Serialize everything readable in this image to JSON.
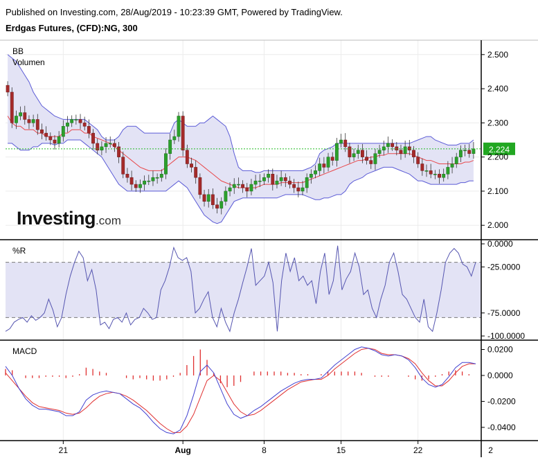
{
  "header": {
    "published": "Published on Investing.com, 28/Aug/2019 - 10:23:39 GMT, Powered by TradingView.",
    "instrument": "Erdgas Futures, (CFD):NG, 300"
  },
  "brand": {
    "logo_text": "Investing",
    "logo_suffix": ".com"
  },
  "panels": {
    "price": {
      "label_bb": "BB",
      "label_vol": "Volumen"
    },
    "williams": {
      "label": "%R"
    },
    "macd": {
      "label": "MACD"
    }
  },
  "colors": {
    "up": "#2ca02c",
    "down": "#a52a2a",
    "bb_band": "#5b5bd6",
    "bb_fill": "#e3e3f5",
    "bb_mid": "#e8474a",
    "wr_line": "#5555b0",
    "macd_line": "#4040d0",
    "signal_line": "#e03030",
    "hist": "#e03030",
    "last_price_bg": "#22a722",
    "last_price_line": "#22bb22"
  },
  "chart_data": [
    {
      "type": "candlestick",
      "name": "price",
      "ylim": [
        1.97,
        2.53
      ],
      "y_ticks": [
        "2.500",
        "2.400",
        "2.300",
        "2.200",
        "2.100",
        "2.000"
      ],
      "y_tick_values": [
        2.5,
        2.4,
        2.3,
        2.2,
        2.1,
        2.0
      ],
      "x_ticks": [
        {
          "label": "21",
          "index": 13
        },
        {
          "label": "Aug",
          "index": 41
        },
        {
          "label": "8",
          "index": 60
        },
        {
          "label": "15",
          "index": 78
        },
        {
          "label": "22",
          "index": 96
        },
        {
          "label": "2",
          "index": 114
        }
      ],
      "last_price": 2.224,
      "last_price_label": "2.224",
      "candle_count": 110,
      "close": [
        2.39,
        2.3,
        2.32,
        2.33,
        2.31,
        2.3,
        2.31,
        2.28,
        2.27,
        2.26,
        2.25,
        2.24,
        2.26,
        2.29,
        2.3,
        2.31,
        2.31,
        2.3,
        2.29,
        2.27,
        2.24,
        2.22,
        2.23,
        2.24,
        2.24,
        2.23,
        2.2,
        2.15,
        2.14,
        2.12,
        2.11,
        2.12,
        2.13,
        2.13,
        2.14,
        2.14,
        2.15,
        2.21,
        2.25,
        2.26,
        2.32,
        2.22,
        2.18,
        2.17,
        2.14,
        2.09,
        2.07,
        2.09,
        2.06,
        2.05,
        2.07,
        2.1,
        2.11,
        2.12,
        2.12,
        2.11,
        2.1,
        2.12,
        2.13,
        2.13,
        2.14,
        2.15,
        2.12,
        2.13,
        2.14,
        2.13,
        2.12,
        2.11,
        2.1,
        2.11,
        2.14,
        2.15,
        2.16,
        2.18,
        2.17,
        2.2,
        2.19,
        2.24,
        2.25,
        2.23,
        2.2,
        2.21,
        2.22,
        2.2,
        2.19,
        2.18,
        2.21,
        2.22,
        2.23,
        2.24,
        2.23,
        2.22,
        2.21,
        2.23,
        2.22,
        2.2,
        2.18,
        2.16,
        2.16,
        2.15,
        2.15,
        2.14,
        2.15,
        2.17,
        2.18,
        2.2,
        2.22,
        2.22,
        2.21,
        2.224
      ],
      "bb_upper": [
        2.5,
        2.49,
        2.48,
        2.46,
        2.44,
        2.42,
        2.39,
        2.37,
        2.35,
        2.34,
        2.33,
        2.32,
        2.315,
        2.31,
        2.31,
        2.31,
        2.31,
        2.31,
        2.31,
        2.3,
        2.29,
        2.28,
        2.26,
        2.25,
        2.25,
        2.25,
        2.26,
        2.28,
        2.29,
        2.29,
        2.29,
        2.28,
        2.27,
        2.27,
        2.27,
        2.27,
        2.27,
        2.27,
        2.27,
        2.3,
        2.31,
        2.3,
        2.29,
        2.29,
        2.29,
        2.3,
        2.3,
        2.31,
        2.32,
        2.31,
        2.3,
        2.29,
        2.26,
        2.21,
        2.17,
        2.16,
        2.16,
        2.16,
        2.155,
        2.155,
        2.16,
        2.16,
        2.16,
        2.16,
        2.16,
        2.16,
        2.16,
        2.16,
        2.16,
        2.16,
        2.165,
        2.17,
        2.18,
        2.21,
        2.22,
        2.225,
        2.23,
        2.24,
        2.24,
        2.24,
        2.24,
        2.24,
        2.24,
        2.24,
        2.24,
        2.24,
        2.24,
        2.24,
        2.24,
        2.24,
        2.24,
        2.24,
        2.24,
        2.24,
        2.24,
        2.245,
        2.25,
        2.255,
        2.26,
        2.26,
        2.25,
        2.245,
        2.24,
        2.235,
        2.235,
        2.235,
        2.24,
        2.24,
        2.24,
        2.25
      ],
      "bb_mid": [
        2.32,
        2.3,
        2.29,
        2.29,
        2.28,
        2.28,
        2.28,
        2.27,
        2.27,
        2.26,
        2.26,
        2.26,
        2.26,
        2.27,
        2.27,
        2.28,
        2.28,
        2.28,
        2.27,
        2.27,
        2.26,
        2.255,
        2.25,
        2.245,
        2.24,
        2.23,
        2.22,
        2.21,
        2.2,
        2.19,
        2.18,
        2.17,
        2.165,
        2.16,
        2.16,
        2.16,
        2.16,
        2.17,
        2.18,
        2.19,
        2.2,
        2.2,
        2.2,
        2.195,
        2.19,
        2.18,
        2.17,
        2.16,
        2.15,
        2.14,
        2.13,
        2.125,
        2.12,
        2.115,
        2.11,
        2.11,
        2.11,
        2.11,
        2.11,
        2.115,
        2.12,
        2.12,
        2.12,
        2.12,
        2.125,
        2.125,
        2.125,
        2.125,
        2.125,
        2.125,
        2.13,
        2.135,
        2.14,
        2.145,
        2.15,
        2.155,
        2.16,
        2.165,
        2.17,
        2.175,
        2.18,
        2.185,
        2.19,
        2.19,
        2.195,
        2.2,
        2.2,
        2.205,
        2.205,
        2.21,
        2.21,
        2.21,
        2.21,
        2.21,
        2.21,
        2.205,
        2.2,
        2.195,
        2.19,
        2.19,
        2.185,
        2.18,
        2.18,
        2.18,
        2.18,
        2.18,
        2.18,
        2.185,
        2.185,
        2.19
      ],
      "bb_lower": [
        2.24,
        2.24,
        2.23,
        2.22,
        2.22,
        2.22,
        2.23,
        2.23,
        2.24,
        2.24,
        2.24,
        2.235,
        2.24,
        2.24,
        2.25,
        2.25,
        2.25,
        2.25,
        2.24,
        2.23,
        2.22,
        2.21,
        2.2,
        2.18,
        2.16,
        2.14,
        2.12,
        2.11,
        2.1,
        2.1,
        2.1,
        2.1,
        2.1,
        2.1,
        2.1,
        2.1,
        2.1,
        2.1,
        2.11,
        2.12,
        2.13,
        2.12,
        2.11,
        2.09,
        2.07,
        2.05,
        2.03,
        2.02,
        2.01,
        2.005,
        2.01,
        2.03,
        2.05,
        2.07,
        2.075,
        2.08,
        2.08,
        2.08,
        2.08,
        2.08,
        2.08,
        2.08,
        2.08,
        2.08,
        2.085,
        2.09,
        2.09,
        2.09,
        2.09,
        2.09,
        2.085,
        2.08,
        2.075,
        2.075,
        2.08,
        2.08,
        2.085,
        2.09,
        2.09,
        2.1,
        2.12,
        2.13,
        2.135,
        2.14,
        2.15,
        2.155,
        2.16,
        2.165,
        2.17,
        2.17,
        2.17,
        2.165,
        2.16,
        2.155,
        2.15,
        2.14,
        2.13,
        2.13,
        2.125,
        2.12,
        2.12,
        2.12,
        2.12,
        2.12,
        2.12,
        2.12,
        2.125,
        2.125,
        2.13,
        2.13
      ]
    },
    {
      "type": "line",
      "name": "%R",
      "ylim": [
        -100,
        0
      ],
      "y_ticks": [
        "0.0000",
        "-25.0000",
        "-75.0000",
        "-100.0000"
      ],
      "y_tick_values": [
        0,
        -25,
        -75,
        -100
      ],
      "band": [
        -80,
        -20
      ],
      "values": [
        -95,
        -92,
        -85,
        -82,
        -80,
        -85,
        -78,
        -83,
        -80,
        -75,
        -60,
        -72,
        -90,
        -80,
        -55,
        -35,
        -20,
        -8,
        -15,
        -40,
        -28,
        -50,
        -88,
        -85,
        -92,
        -82,
        -80,
        -85,
        -75,
        -88,
        -82,
        -80,
        -70,
        -75,
        -82,
        -80,
        -50,
        -40,
        -25,
        -4,
        -15,
        -18,
        -15,
        -30,
        -75,
        -70,
        -60,
        -52,
        -80,
        -90,
        -70,
        -85,
        -95,
        -75,
        -60,
        -42,
        -25,
        -5,
        -45,
        -40,
        -35,
        -20,
        -42,
        -95,
        -40,
        -10,
        -30,
        -15,
        -40,
        -35,
        -45,
        -40,
        -65,
        -30,
        -10,
        -55,
        -40,
        -2,
        -50,
        -38,
        -30,
        -10,
        -25,
        -55,
        -50,
        -70,
        -80,
        -60,
        -45,
        -20,
        -10,
        -30,
        -55,
        -60,
        -70,
        -80,
        -85,
        -60,
        -90,
        -95,
        -75,
        -50,
        -20,
        -10,
        -5,
        -10,
        -22,
        -25,
        -35,
        -20
      ]
    },
    {
      "type": "line",
      "name": "MACD",
      "ylim": [
        -0.047,
        0.024
      ],
      "y_ticks": [
        "0.0200",
        "0.0000",
        "-0.0200",
        "-0.0400"
      ],
      "y_tick_values": [
        0.02,
        0.0,
        -0.02,
        -0.04
      ],
      "macd": [
        0.007,
        0.0,
        -0.01,
        -0.018,
        -0.023,
        -0.026,
        -0.026,
        -0.027,
        -0.028,
        -0.031,
        -0.031,
        -0.028,
        -0.019,
        -0.015,
        -0.013,
        -0.012,
        -0.013,
        -0.014,
        -0.018,
        -0.022,
        -0.025,
        -0.03,
        -0.036,
        -0.041,
        -0.044,
        -0.045,
        -0.042,
        -0.031,
        -0.015,
        0.003,
        0.008,
        0.002,
        -0.01,
        -0.022,
        -0.03,
        -0.033,
        -0.031,
        -0.027,
        -0.024,
        -0.02,
        -0.016,
        -0.012,
        -0.009,
        -0.006,
        -0.004,
        -0.003,
        -0.003,
        -0.002,
        0.003,
        0.008,
        0.012,
        0.016,
        0.02,
        0.022,
        0.021,
        0.019,
        0.016,
        0.015,
        0.016,
        0.015,
        0.012,
        0.006,
        -0.002,
        -0.007,
        -0.009,
        -0.007,
        -0.001,
        0.006,
        0.01,
        0.01,
        0.009
      ],
      "signal": [
        0.002,
        -0.004,
        -0.01,
        -0.016,
        -0.021,
        -0.024,
        -0.025,
        -0.026,
        -0.027,
        -0.029,
        -0.03,
        -0.029,
        -0.025,
        -0.02,
        -0.016,
        -0.014,
        -0.013,
        -0.014,
        -0.016,
        -0.019,
        -0.023,
        -0.027,
        -0.032,
        -0.037,
        -0.041,
        -0.044,
        -0.044,
        -0.039,
        -0.03,
        -0.017,
        -0.004,
        0.0,
        -0.004,
        -0.013,
        -0.022,
        -0.028,
        -0.031,
        -0.03,
        -0.027,
        -0.023,
        -0.019,
        -0.015,
        -0.011,
        -0.008,
        -0.005,
        -0.004,
        -0.003,
        -0.003,
        0.0,
        0.005,
        0.009,
        0.013,
        0.017,
        0.02,
        0.021,
        0.02,
        0.017,
        0.016,
        0.016,
        0.015,
        0.013,
        0.009,
        0.002,
        -0.004,
        -0.008,
        -0.008,
        -0.004,
        0.002,
        0.007,
        0.009,
        0.009
      ],
      "hist": [
        0.005,
        0.004,
        0.0,
        -0.002,
        -0.002,
        -0.002,
        -0.001,
        -0.001,
        -0.001,
        -0.002,
        -0.001,
        0.001,
        0.006,
        0.005,
        0.003,
        0.002,
        0.0,
        0.0,
        -0.002,
        -0.003,
        -0.002,
        -0.003,
        -0.004,
        -0.004,
        -0.003,
        -0.001,
        0.002,
        0.008,
        0.015,
        0.02,
        0.012,
        0.002,
        -0.006,
        -0.009,
        -0.008,
        -0.005,
        0.0,
        0.003,
        0.003,
        0.003,
        0.003,
        0.003,
        0.002,
        0.002,
        0.001,
        0.001,
        0.0,
        0.001,
        0.003,
        0.003,
        0.003,
        0.003,
        0.003,
        0.002,
        0.0,
        -0.001,
        -0.001,
        -0.001,
        0.0,
        0.0,
        -0.001,
        -0.003,
        -0.004,
        -0.003,
        -0.001,
        0.001,
        0.003,
        0.004,
        0.003,
        0.001,
        0.0
      ]
    }
  ]
}
